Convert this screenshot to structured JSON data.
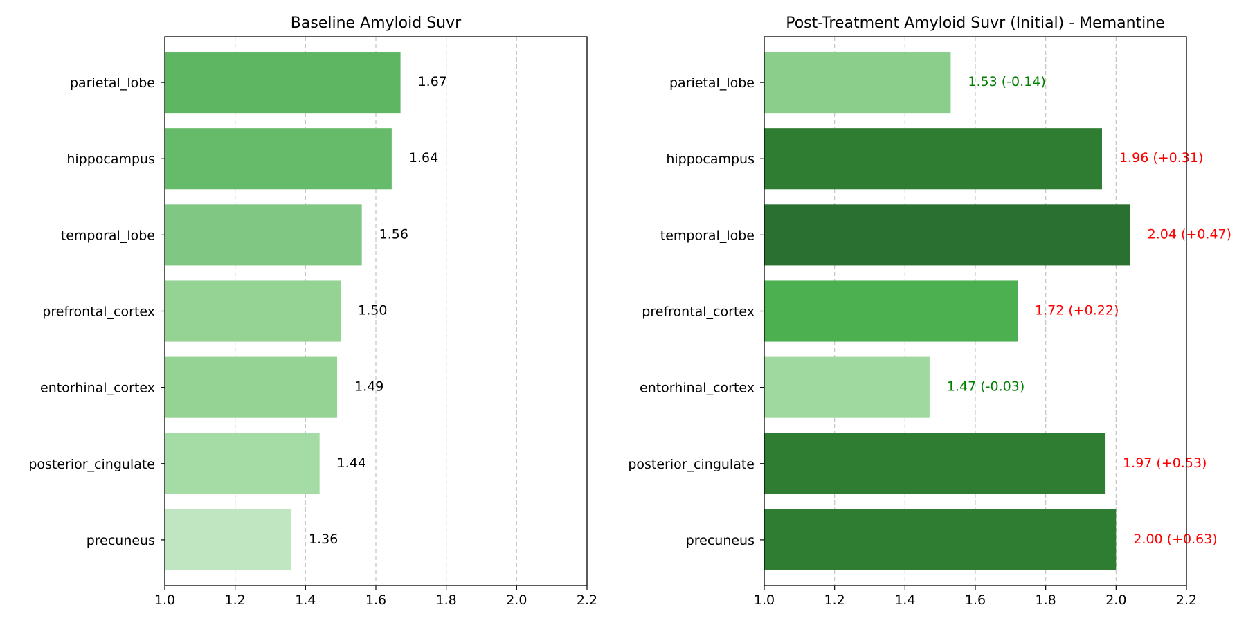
{
  "chart_data": [
    {
      "type": "bar",
      "orientation": "horizontal",
      "title": "Baseline Amyloid Suvr",
      "categories": [
        "parietal_lobe",
        "hippocampus",
        "temporal_lobe",
        "prefrontal_cortex",
        "entorhinal_cortex",
        "posterior_cingulate",
        "precuneus"
      ],
      "values": [
        1.67,
        1.645,
        1.56,
        1.5,
        1.49,
        1.44,
        1.36
      ],
      "value_labels": [
        "1.67",
        "1.64",
        "1.56",
        "1.50",
        "1.49",
        "1.44",
        "1.36"
      ],
      "label_colors": [
        "#000000",
        "#000000",
        "#000000",
        "#000000",
        "#000000",
        "#000000",
        "#000000"
      ],
      "bar_colors": [
        "#5eb662",
        "#66bb6a",
        "#81c784",
        "#94d394",
        "#94d394",
        "#a5dba5",
        "#c0e5c1"
      ],
      "xlim": [
        1.0,
        2.2
      ],
      "xticks": [
        "1.0",
        "1.2",
        "1.4",
        "1.6",
        "1.8",
        "2.0",
        "2.2"
      ],
      "grid": "x-dashed",
      "xlabel": "",
      "ylabel": ""
    },
    {
      "type": "bar",
      "orientation": "horizontal",
      "title": "Post-Treatment Amyloid Suvr (Initial) - Memantine",
      "categories": [
        "parietal_lobe",
        "hippocampus",
        "temporal_lobe",
        "prefrontal_cortex",
        "entorhinal_cortex",
        "posterior_cingulate",
        "precuneus"
      ],
      "values": [
        1.53,
        1.96,
        2.04,
        1.72,
        1.47,
        1.97,
        2.0
      ],
      "value_labels": [
        "1.53 (-0.14)",
        "1.96 (+0.31)",
        "2.04 (+0.47)",
        "1.72 (+0.22)",
        "1.47 (-0.03)",
        "1.97 (+0.53)",
        "2.00 (+0.63)"
      ],
      "label_colors": [
        "#008000",
        "#ff0000",
        "#ff0000",
        "#ff0000",
        "#008000",
        "#ff0000",
        "#ff0000"
      ],
      "bar_colors": [
        "#8bcd8b",
        "#2e7d32",
        "#2a7030",
        "#4caf50",
        "#a0d9a0",
        "#2e7d32",
        "#2e7d32"
      ],
      "xlim": [
        1.0,
        2.2
      ],
      "xticks": [
        "1.0",
        "1.2",
        "1.4",
        "1.6",
        "1.8",
        "2.0",
        "2.2"
      ],
      "grid": "x-dashed",
      "xlabel": "",
      "ylabel": ""
    }
  ]
}
